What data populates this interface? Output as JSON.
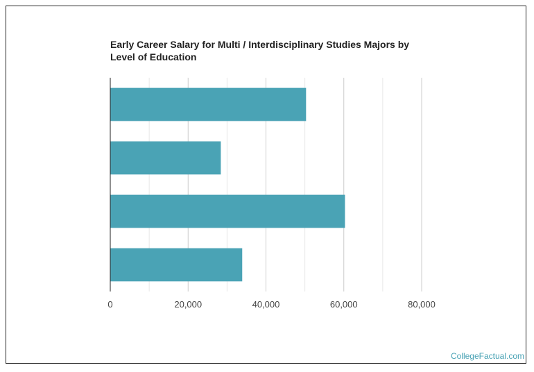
{
  "chart_data": {
    "type": "bar",
    "orientation": "horizontal",
    "title": "Early Career Salary for Multi / Interdisciplinary Studies Majors by Level of Education",
    "xlabel": "",
    "ylabel": "",
    "xlim": [
      0,
      80000
    ],
    "xticks": [
      0,
      20000,
      40000,
      60000,
      80000
    ],
    "xtick_labels": [
      "0",
      "20,000",
      "40,000",
      "60,000",
      "80,000"
    ],
    "categories": [
      "",
      "",
      "",
      ""
    ],
    "values": [
      50300,
      28400,
      60300,
      33900
    ],
    "bar_color": "#4aa3b5",
    "grid": true
  },
  "watermark": "CollegeFactual.com"
}
